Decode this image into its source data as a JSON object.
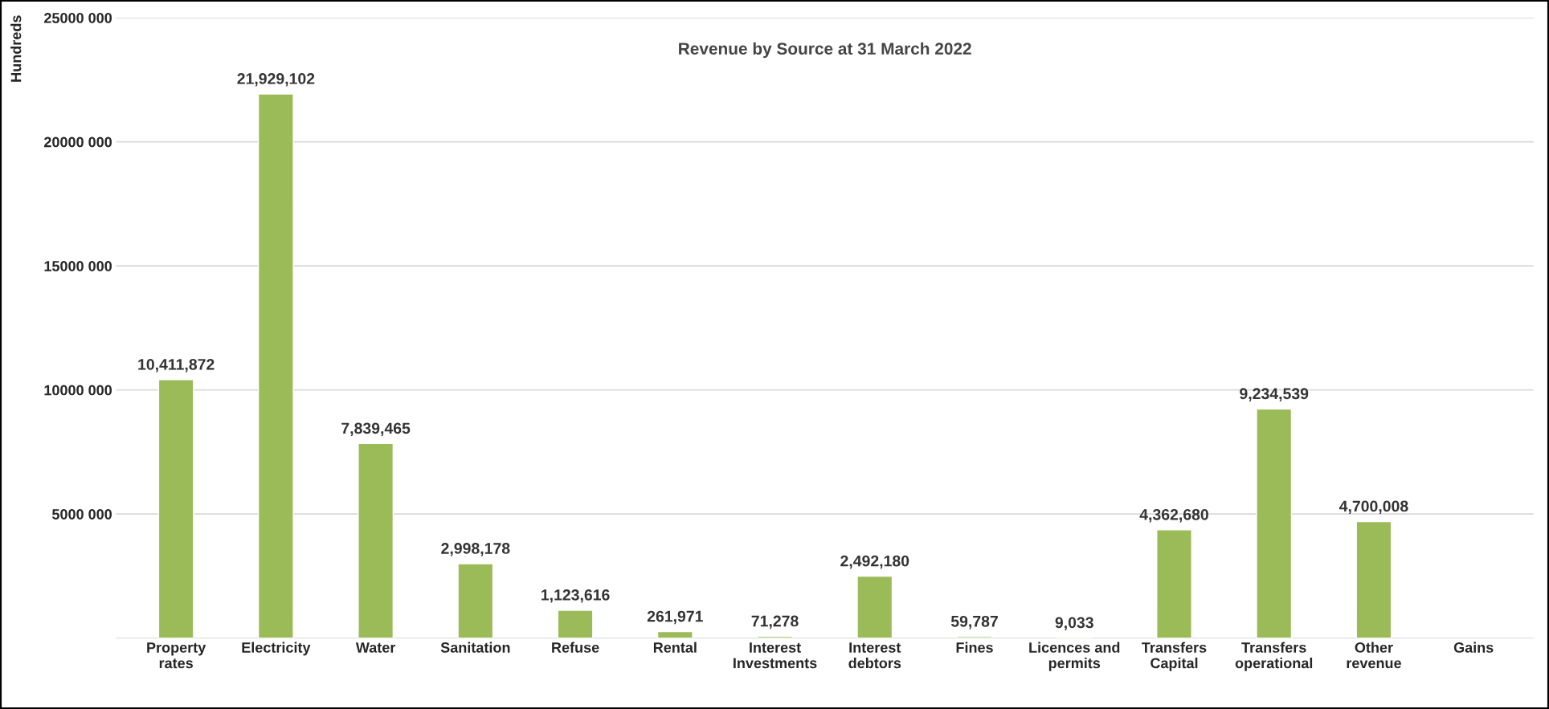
{
  "chart_data": {
    "type": "bar",
    "title": "Revenue by Source at 31 March 2022",
    "ylabel": "Hundreds",
    "categories": [
      "Property\nrates",
      "Electricity",
      "Water",
      "Sanitation",
      "Refuse",
      "Rental",
      "Interest\nInvestments",
      "Interest\ndebtors",
      "Fines",
      "Licences and\npermits",
      "Transfers\nCapital",
      "Transfers\noperational",
      "Other\nrevenue",
      "Gains"
    ],
    "values": [
      10411872,
      21929102,
      7839465,
      2998178,
      1123616,
      261971,
      71278,
      2492180,
      59787,
      9033,
      4362680,
      9234539,
      4700008,
      null
    ],
    "value_labels": [
      "10,411,872",
      "21,929,102",
      "7,839,465",
      "2,998,178",
      "1,123,616",
      "261,971",
      "71,278",
      "2,492,180",
      "59,787",
      "9,033",
      "4,362,680",
      "9,234,539",
      "4,700,008",
      null
    ],
    "color": "#9bbb59",
    "ylim": [
      0,
      25000000
    ],
    "yticks": [
      {
        "value": 5000000,
        "label": "5000 000"
      },
      {
        "value": 10000000,
        "label": "10000 000"
      },
      {
        "value": 15000000,
        "label": "15000 000"
      },
      {
        "value": 20000000,
        "label": "20000 000"
      },
      {
        "value": 25000000,
        "label": "25000 000"
      }
    ],
    "grid": "y"
  }
}
